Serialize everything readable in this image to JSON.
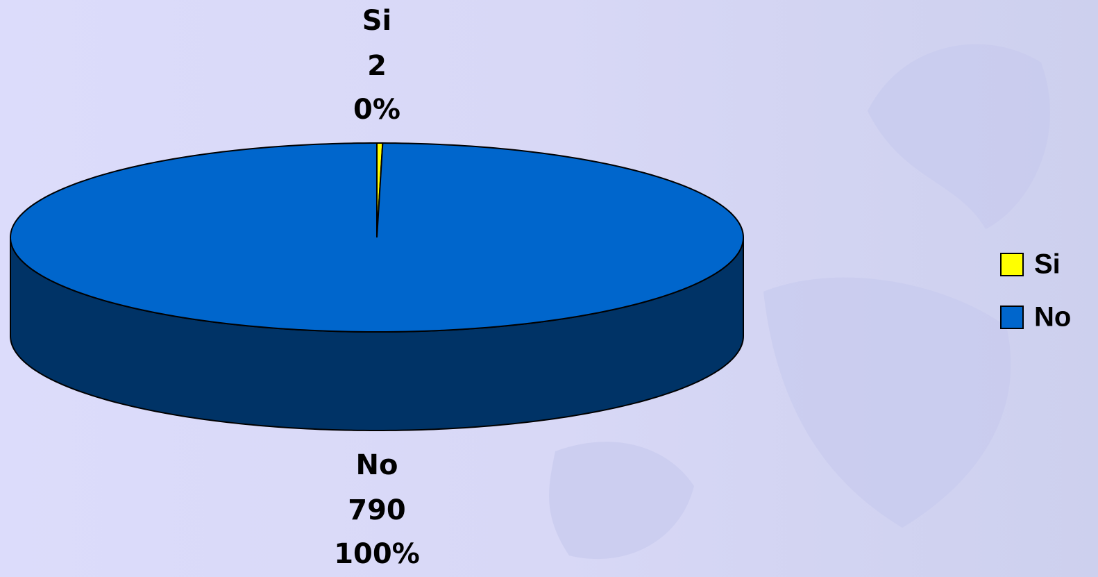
{
  "chart_data": {
    "type": "pie3d",
    "categories": [
      "Si",
      "No"
    ],
    "values": [
      2,
      790
    ],
    "percent_labels": [
      "0%",
      "100%"
    ],
    "colors": [
      "#ffff00",
      "#0066cc"
    ],
    "side_colors": [
      "#999900",
      "#003366"
    ],
    "legend": "right"
  }
}
